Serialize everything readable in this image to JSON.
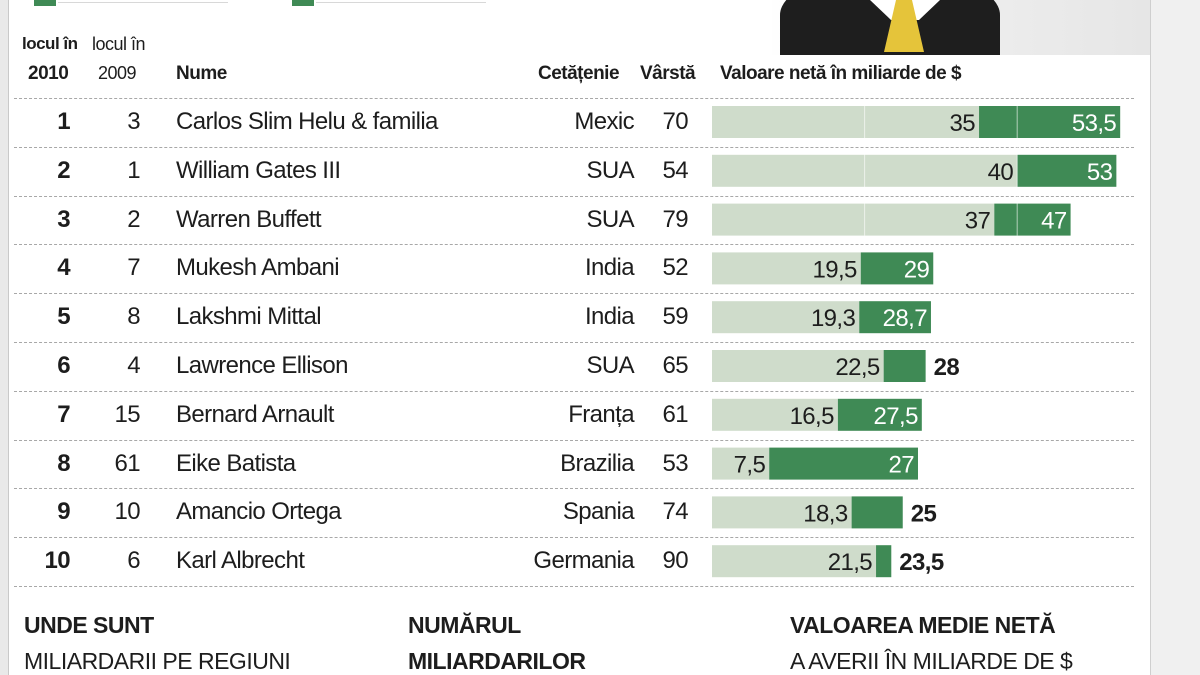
{
  "header": {
    "rank2010_line1": "locul în",
    "rank2010_line2": "2010",
    "rank2009_line1": "locul în",
    "rank2009_line2": "2009",
    "name": "Nume",
    "citizenship": "Cetățenie",
    "age": "Vârstă",
    "value": "Valoare netă în miliarde de $"
  },
  "rows": [
    {
      "rank2010": "1",
      "rank2009": "3",
      "name": "Carlos Slim Helu & familia",
      "citizenship": "Mexic",
      "age": "70"
    },
    {
      "rank2010": "2",
      "rank2009": "1",
      "name": "William Gates III",
      "citizenship": "SUA",
      "age": "54"
    },
    {
      "rank2010": "3",
      "rank2009": "2",
      "name": "Warren Buffett",
      "citizenship": "SUA",
      "age": "79"
    },
    {
      "rank2010": "4",
      "rank2009": "7",
      "name": "Mukesh Ambani",
      "citizenship": "India",
      "age": "52"
    },
    {
      "rank2010": "5",
      "rank2009": "8",
      "name": "Lakshmi Mittal",
      "citizenship": "India",
      "age": "59"
    },
    {
      "rank2010": "6",
      "rank2009": "4",
      "name": "Lawrence Ellison",
      "citizenship": "SUA",
      "age": "65"
    },
    {
      "rank2010": "7",
      "rank2009": "15",
      "name": "Bernard Arnault",
      "citizenship": "Franța",
      "age": "61"
    },
    {
      "rank2010": "8",
      "rank2009": "61",
      "name": "Eike Batista",
      "citizenship": "Brazilia",
      "age": "53"
    },
    {
      "rank2010": "9",
      "rank2009": "10",
      "name": "Amancio Ortega",
      "citizenship": "Spania",
      "age": "74"
    },
    {
      "rank2010": "10",
      "rank2009": "6",
      "name": "Karl Albrecht",
      "citizenship": "Germania",
      "age": "90"
    }
  ],
  "chart_data": {
    "type": "bar",
    "categories": [
      "Carlos Slim Helu & familia",
      "William Gates III",
      "Warren Buffett",
      "Mukesh Ambani",
      "Lakshmi Mittal",
      "Lawrence Ellison",
      "Bernard Arnault",
      "Eike Batista",
      "Amancio Ortega",
      "Karl Albrecht"
    ],
    "series": [
      {
        "values": [
          35,
          40,
          37,
          19.5,
          19.3,
          22.5,
          16.5,
          7.5,
          18.3,
          21.5
        ],
        "labels": [
          "35",
          "40",
          "37",
          "19,5",
          "19,3",
          "22,5",
          "16,5",
          "7,5",
          "18,3",
          "21,5"
        ]
      },
      {
        "values": [
          53.5,
          53,
          47,
          29,
          28.7,
          28,
          27.5,
          27,
          25,
          23.5
        ],
        "labels": [
          "53,5",
          "53",
          "47",
          "29",
          "28,7",
          "28",
          "27,5",
          "27",
          "25",
          "23,5"
        ]
      }
    ],
    "xlim": [
      0,
      54
    ],
    "colors": {
      "previous": "#cfdccb",
      "current": "#3f8a55"
    },
    "title": "Valoare netă în miliarde de $"
  },
  "bottom": {
    "col1_title": "UNDE SUNT",
    "col1_sub": "MILIARDARII PE REGIUNI",
    "col2_title": "NUMĂRUL",
    "col2_sub": "MILIARDARILOR",
    "col3_title": "VALOAREA MEDIE NETĂ",
    "col3_sub": "A AVERII ÎN MILIARDE DE $"
  }
}
